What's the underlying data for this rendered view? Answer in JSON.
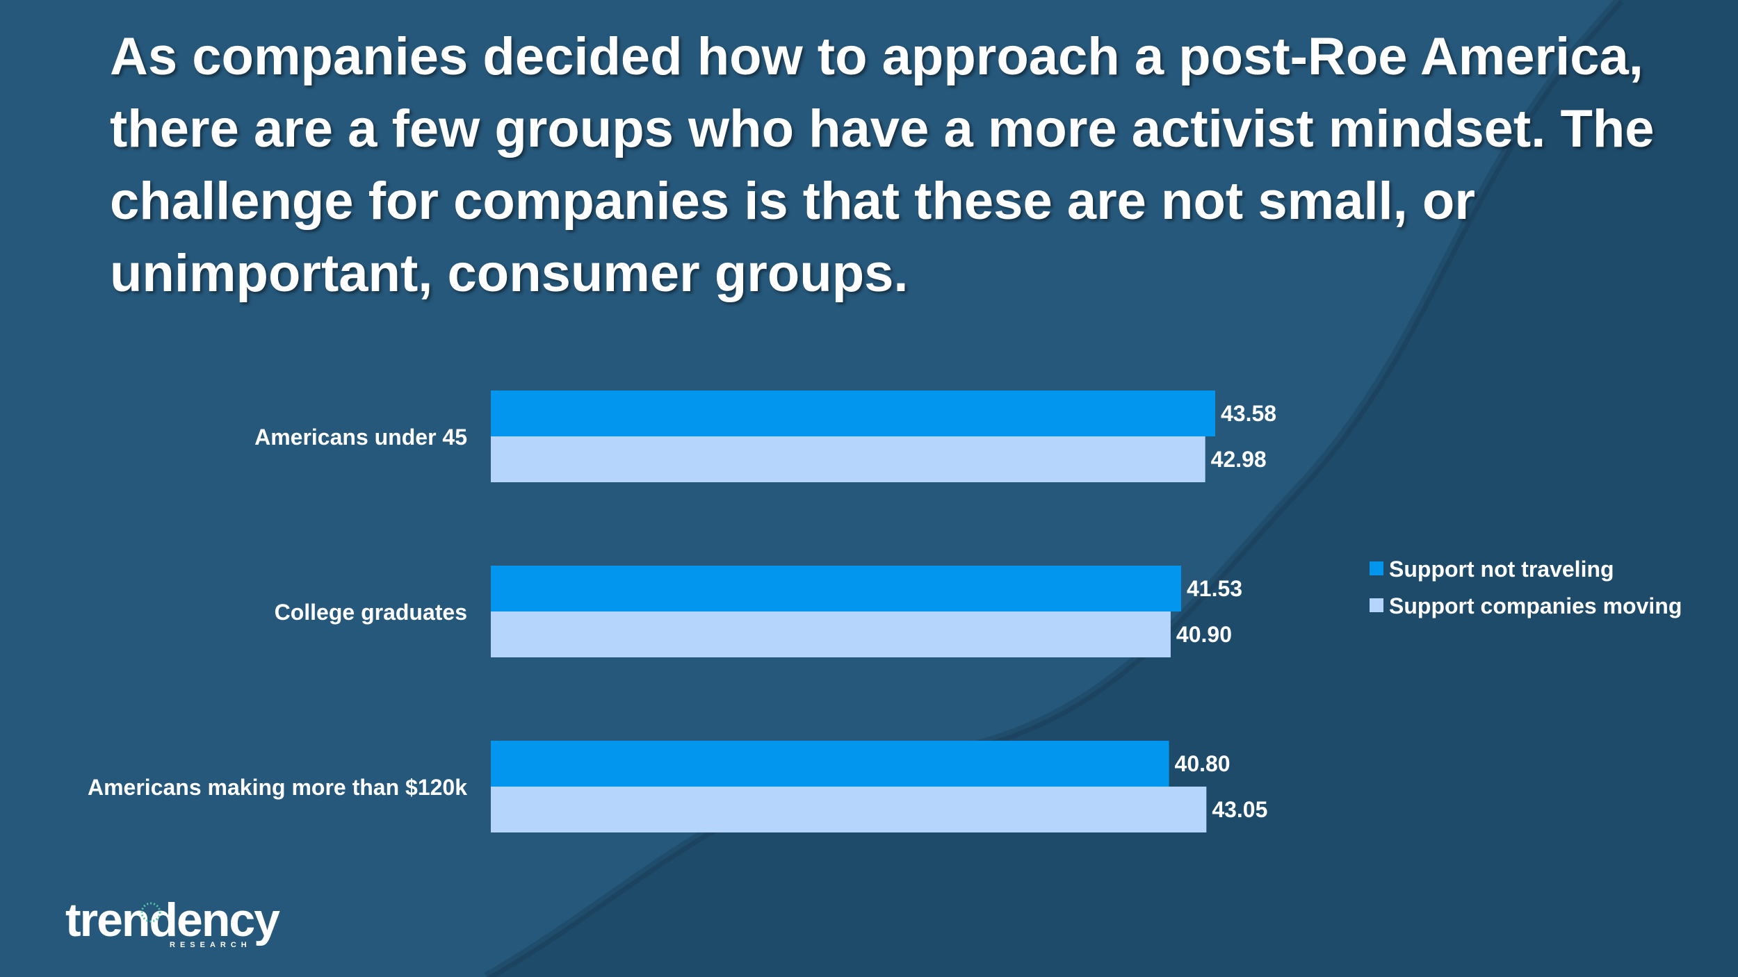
{
  "slide": {
    "title": "As companies decided how to approach a post-Roe America, there are a few groups who have a more activist mindset. The challenge for companies is that these are not small, or unimportant, consumer groups."
  },
  "logo": {
    "name": "trendency",
    "subtitle": "RESEARCH"
  },
  "colors": {
    "background": "#26587b",
    "swoosh": "#1f4b6a",
    "series1": "#0296ee",
    "series2": "#b5d5fd",
    "text": "#ffffff"
  },
  "chart_data": {
    "type": "bar",
    "orientation": "horizontal",
    "title": "",
    "xlabel": "",
    "ylabel": "",
    "categories": [
      "Americans under 45",
      "College graduates",
      "Americans making more than $120k"
    ],
    "series": [
      {
        "name": "Support not traveling",
        "values": [
          43.58,
          41.53,
          40.8
        ],
        "labels": [
          "43.58",
          "41.53",
          "40.80"
        ]
      },
      {
        "name": "Support companies moving",
        "values": [
          42.98,
          40.9,
          43.05
        ],
        "labels": [
          "42.98",
          "40.90",
          "43.05"
        ]
      }
    ],
    "xlim": [
      0,
      43.58
    ],
    "grid": false,
    "legend_position": "right"
  }
}
